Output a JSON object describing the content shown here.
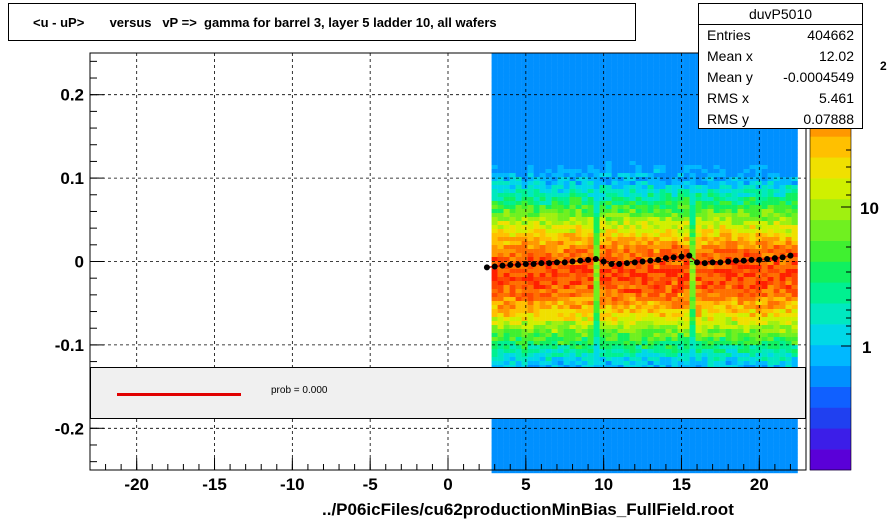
{
  "title": "<u - uP>       versus   vP =>  gamma for barrel 3, layer 5 ladder 10, all wafers",
  "stats": {
    "name": "duvP5010",
    "rows": [
      {
        "label": "Entries",
        "value": "404662"
      },
      {
        "label": "Mean x",
        "value": "12.02"
      },
      {
        "label": "Mean y",
        "value": "-0.0004549"
      },
      {
        "label": "RMS x",
        "value": "5.461"
      },
      {
        "label": "RMS y",
        "value": "0.07888"
      }
    ]
  },
  "legend": {
    "text": "prob = 0.000",
    "line_color": "#e00000"
  },
  "footer": "../P06icFiles/cu62productionMinBias_FullField.root",
  "colorbar_labels": [
    "10",
    "1"
  ],
  "colorbar_exponent": "2",
  "chart_data": {
    "type": "heatmap",
    "xlim": [
      -23,
      23
    ],
    "ylim": [
      -0.25,
      0.25
    ],
    "x_ticks": [
      -20,
      -15,
      -10,
      -5,
      0,
      5,
      10,
      15,
      20
    ],
    "y_ticks": [
      -0.2,
      -0.1,
      0,
      0.1,
      0.2
    ],
    "x_tick_labels": [
      "-20",
      "-15",
      "-10",
      "-5",
      "0",
      "5",
      "10",
      "15",
      "20"
    ],
    "y_tick_labels": [
      "-0.2",
      "-0.1",
      "0",
      "0.1",
      "0.2"
    ],
    "grid": true,
    "heat_x_range": [
      2.8,
      22.3
    ],
    "heat_gaps_x": [
      9.4,
      15.6
    ],
    "profile": {
      "x": [
        2.5,
        3,
        3.5,
        4,
        4.5,
        5,
        5.5,
        6,
        6.5,
        7,
        7.5,
        8,
        8.5,
        9,
        9.5,
        10,
        10.5,
        11,
        11.5,
        12,
        12.5,
        13,
        13.5,
        14,
        14.5,
        15,
        15.5,
        16,
        16.5,
        17,
        17.5,
        18,
        18.5,
        19,
        19.5,
        20,
        20.5,
        21,
        21.5,
        22
      ],
      "y": [
        -0.007,
        -0.006,
        -0.005,
        -0.004,
        -0.004,
        -0.003,
        -0.003,
        -0.002,
        -0.002,
        -0.001,
        -0.001,
        0.0,
        0.001,
        0.002,
        0.003,
        0.0,
        -0.003,
        -0.003,
        -0.002,
        -0.001,
        0.0,
        0.001,
        0.002,
        0.004,
        0.005,
        0.006,
        0.007,
        -0.001,
        -0.002,
        -0.001,
        -0.001,
        0.0,
        0.001,
        0.001,
        0.002,
        0.002,
        0.003,
        0.004,
        0.005,
        0.007
      ]
    }
  }
}
